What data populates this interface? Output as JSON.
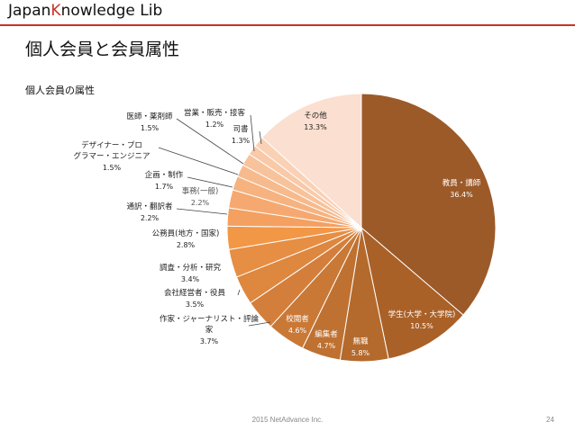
{
  "header": {
    "logo_part1": "Japan",
    "logo_part2": "K",
    "logo_part3": "nowledge",
    "logo_part4": " Lib",
    "brand_color": "#c8322a"
  },
  "page_title": "個人会員と会員属性",
  "footer": "2015 NetAdvance Inc.",
  "page_number": "24",
  "chart_data": {
    "type": "pie",
    "title": "個人会員の属性",
    "start": "12 o'clock",
    "direction": "clockwise",
    "slices": [
      {
        "label": "教員・講師",
        "value": 36.4,
        "display": "36.4%",
        "color": "#9c5a28"
      },
      {
        "label": "学生(大学・大学院)",
        "value": 10.5,
        "display": "10.5%",
        "color": "#a96128"
      },
      {
        "label": "無職",
        "value": 5.8,
        "display": "5.8%",
        "color": "#b46a2c"
      },
      {
        "label": "編集者",
        "value": 4.7,
        "display": "4.7%",
        "color": "#bf7131"
      },
      {
        "label": "校閲者",
        "value": 4.6,
        "display": "4.6%",
        "color": "#c97836"
      },
      {
        "label": "作家・ジャーナリスト・評論家",
        "value": 3.7,
        "display": "3.7%",
        "color": "#d37f3b"
      },
      {
        "label": "会社経営者・役員",
        "value": 3.5,
        "display": "3.5%",
        "color": "#dd873f"
      },
      {
        "label": "調査・分析・研究",
        "value": 3.4,
        "display": "3.4%",
        "color": "#e68e43"
      },
      {
        "label": "公務員(地方・国家)",
        "value": 2.8,
        "display": "2.8%",
        "color": "#f29746"
      },
      {
        "label": "通訳・翻訳者",
        "value": 2.2,
        "display": "2.2%",
        "color": "#f4a060"
      },
      {
        "label": "事務(一般)",
        "value": 2.2,
        "display": "2.2%",
        "color": "#f5a970"
      },
      {
        "label": "企画・制作",
        "value": 1.7,
        "display": "1.7%",
        "color": "#f6b27f"
      },
      {
        "label": "デザイナー・プログラマー・エンジニア",
        "value": 1.5,
        "display": "1.5%",
        "color": "#f7ba8d"
      },
      {
        "label": "医師・薬剤師",
        "value": 1.5,
        "display": "1.5%",
        "color": "#f8c29b"
      },
      {
        "label": "営業・販売・接客",
        "value": 1.2,
        "display": "1.2%",
        "color": "#f9c9a8"
      },
      {
        "label": "司書",
        "value": 1.3,
        "display": "1.3%",
        "color": "#fad1b5"
      },
      {
        "label": "その他",
        "value": 13.3,
        "display": "13.3%",
        "color": "#fbdfd0"
      }
    ]
  }
}
